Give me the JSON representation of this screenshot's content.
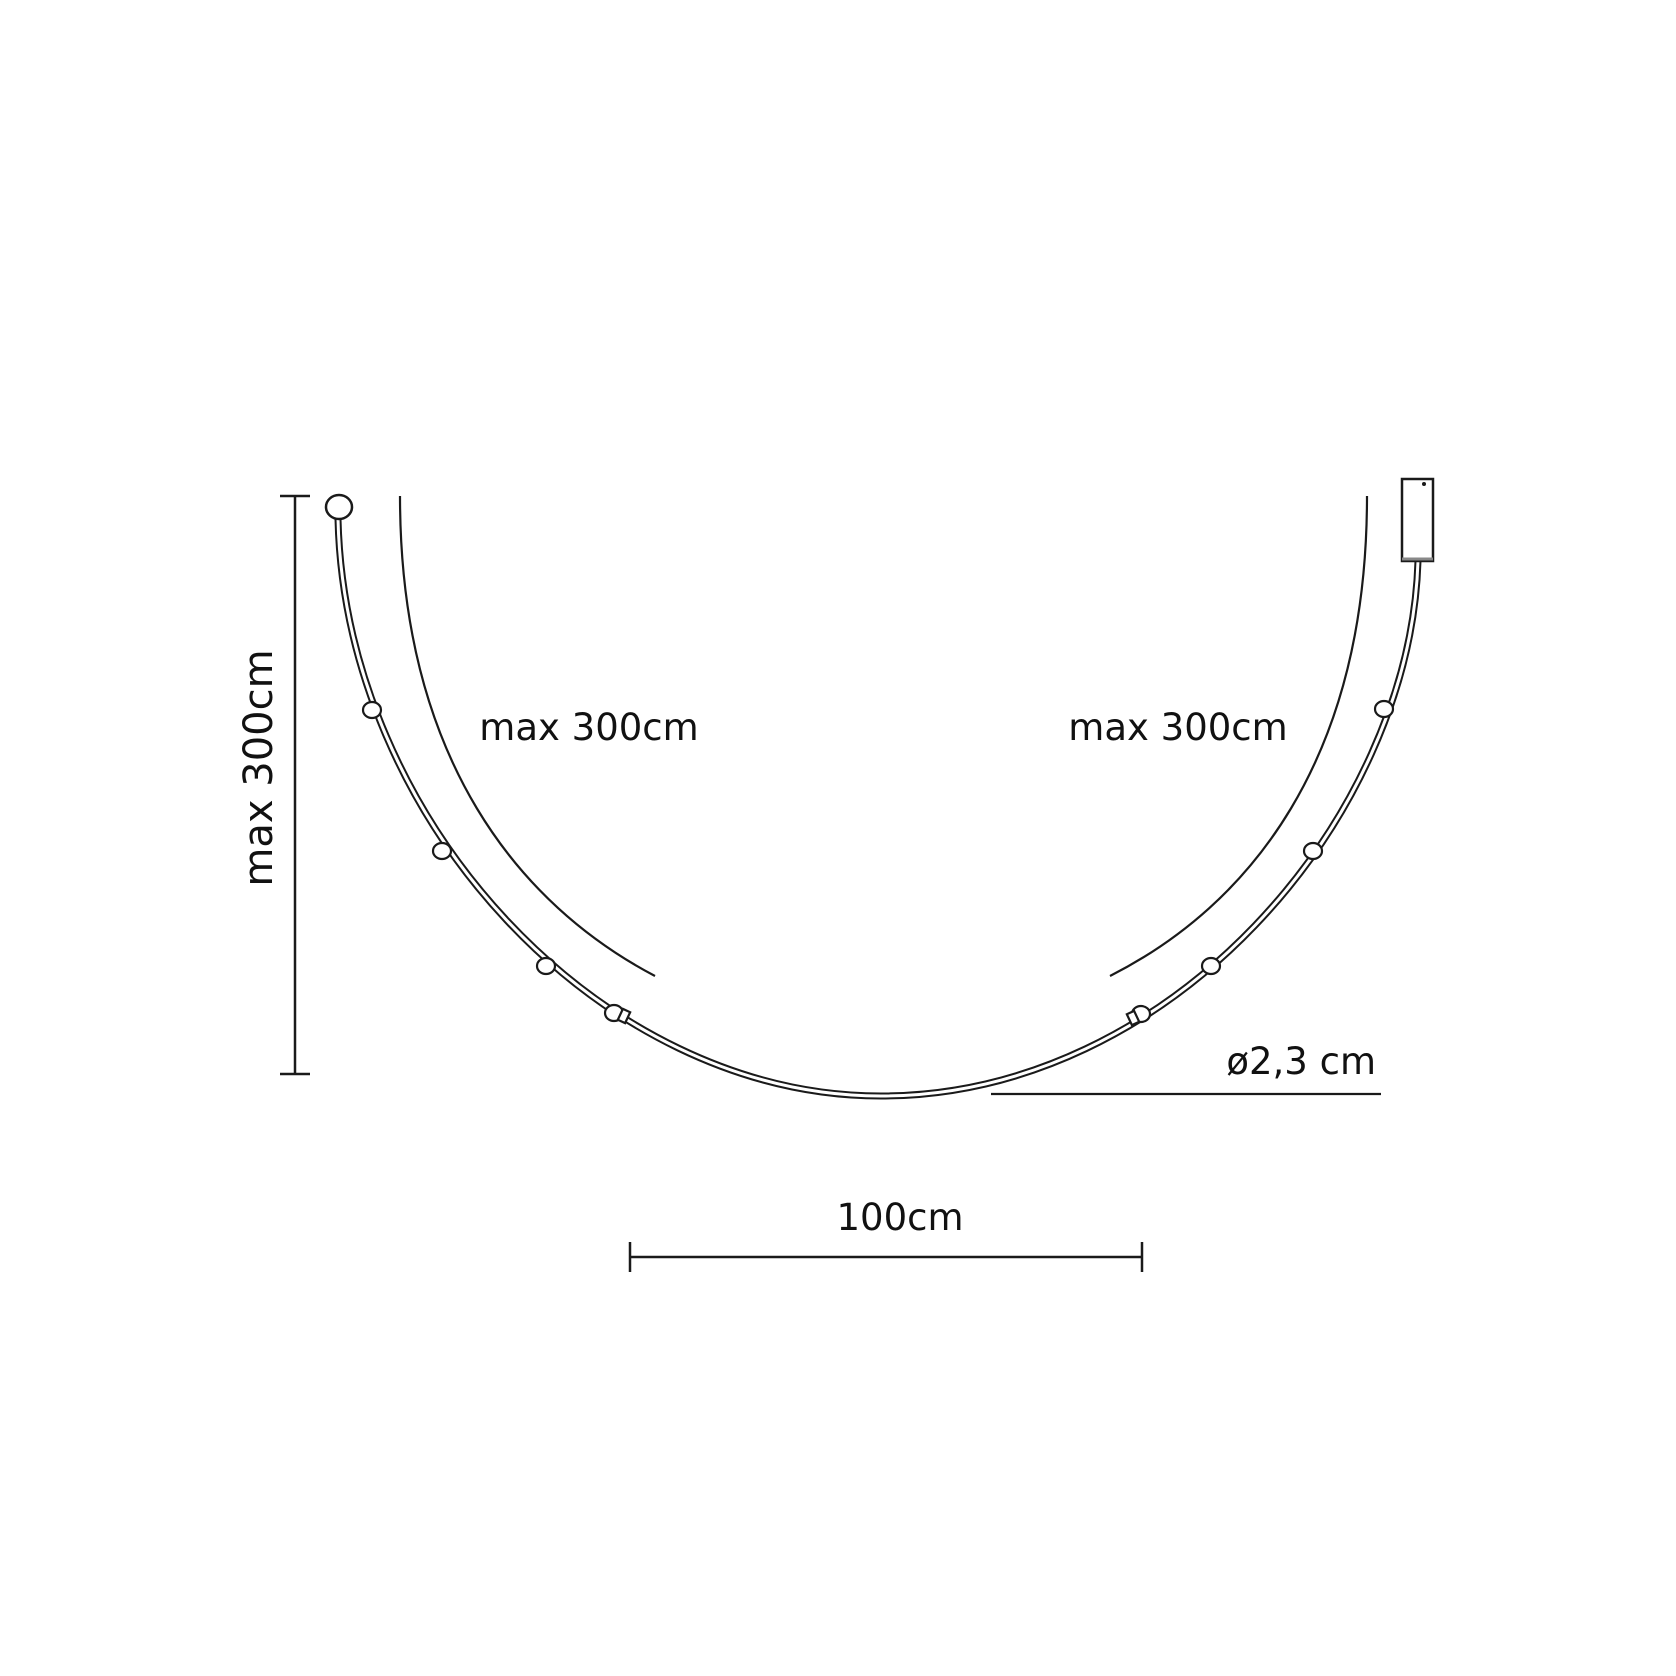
{
  "labels": {
    "height": "max 300cm",
    "left_arc": "max 300cm",
    "right_arc": "max 300cm",
    "diameter": "ø2,3 cm",
    "width": "100cm"
  },
  "colors": {
    "line": "#1a1a1a",
    "background": "#ffffff"
  }
}
